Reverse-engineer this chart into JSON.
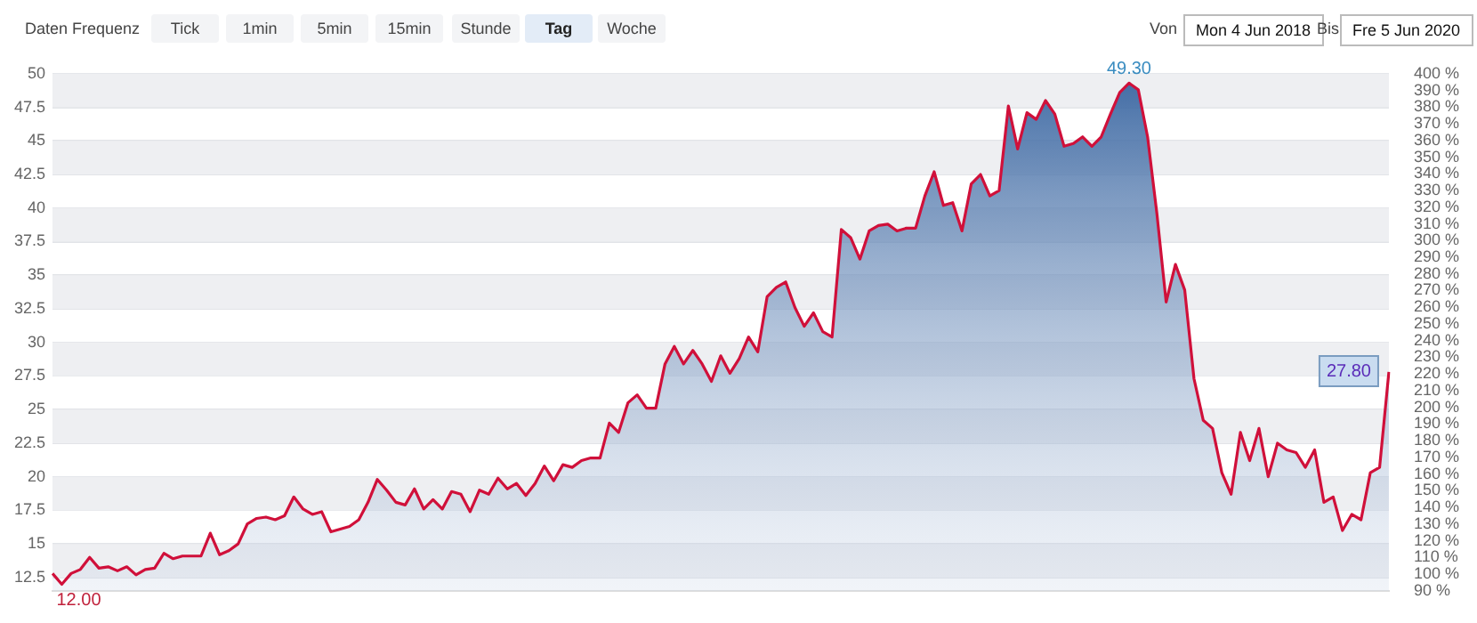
{
  "chart_data": {
    "type": "area",
    "annotations": [
      "Daten Frequenz",
      "Tick",
      "1min",
      "5min",
      "15min",
      "Stunde",
      "Tag",
      "Woche",
      "Von",
      "Mon 4 Jun 2018",
      "Bis",
      "Fre 5 Jun 2020"
    ],
    "categories": [
      null,
      null,
      null,
      null,
      null,
      null,
      null,
      null,
      null,
      null,
      null,
      null,
      null,
      null,
      null,
      null,
      null,
      null,
      null,
      null,
      null,
      null,
      null,
      null,
      null,
      null,
      null,
      null,
      null,
      null,
      null,
      null,
      null,
      null,
      null,
      null,
      null,
      null,
      null,
      null,
      null,
      null,
      null,
      null,
      null,
      null,
      null,
      null,
      null,
      null,
      null,
      null,
      null,
      null,
      null,
      null,
      null,
      null,
      null,
      null,
      null,
      null,
      null,
      null,
      null,
      null,
      null,
      null,
      null,
      null,
      null,
      null,
      null,
      null,
      null,
      null,
      null,
      null,
      null,
      null,
      null,
      null,
      null,
      null,
      null,
      null,
      null,
      null,
      null,
      null,
      null,
      null,
      null,
      null,
      null,
      null,
      null,
      null,
      null,
      null,
      null,
      null,
      null,
      null,
      null,
      null,
      null,
      null,
      null,
      null,
      null,
      null,
      null,
      null,
      null,
      null,
      null,
      null,
      null,
      null,
      null,
      null,
      null,
      null,
      null,
      null,
      null,
      null,
      null,
      null,
      null,
      null,
      null,
      null,
      null,
      null,
      null,
      null,
      null,
      null,
      null,
      null,
      null,
      null,
      null
    ],
    "series": [
      {
        "color": "#d0103a",
        "values": [
          12.8,
          12.0,
          12.8,
          13.1,
          14.0,
          13.2,
          13.3,
          13.0,
          13.3,
          12.7,
          13.1,
          13.2,
          14.3,
          13.9,
          14.1,
          14.1,
          14.1,
          15.8,
          14.2,
          14.5,
          15.0,
          16.5,
          16.9,
          17.0,
          16.8,
          17.1,
          18.5,
          17.6,
          17.2,
          17.4,
          15.9,
          16.1,
          16.3,
          16.8,
          18.1,
          19.8,
          19.0,
          18.1,
          17.9,
          19.1,
          17.6,
          18.3,
          17.6,
          18.9,
          18.7,
          17.4,
          19.0,
          18.7,
          19.9,
          19.1,
          19.5,
          18.6,
          19.5,
          20.8,
          19.7,
          20.9,
          20.7,
          21.2,
          21.4,
          21.4,
          24.0,
          23.3,
          25.5,
          26.1,
          25.1,
          25.1,
          28.4,
          29.7,
          28.4,
          29.4,
          28.4,
          27.1,
          29.0,
          27.7,
          28.8,
          30.4,
          29.3,
          33.4,
          34.1,
          34.5,
          32.6,
          31.2,
          32.2,
          30.8,
          30.4,
          38.4,
          37.8,
          36.2,
          38.3,
          38.7,
          38.8,
          38.3,
          38.5,
          38.5,
          40.9,
          42.7,
          40.2,
          40.4,
          38.3,
          41.8,
          42.5,
          40.9,
          41.3,
          47.6,
          44.4,
          47.1,
          46.6,
          48.0,
          47.0,
          44.6,
          44.8,
          45.3,
          44.6,
          45.3,
          47.0,
          48.6,
          49.3,
          48.8,
          45.3,
          39.6,
          33.0,
          35.8,
          33.9,
          27.3,
          24.2,
          23.6,
          20.3,
          18.7,
          23.3,
          21.2,
          23.6,
          20.0,
          22.5,
          22.0,
          21.8,
          20.7,
          22.0,
          18.1,
          18.5,
          16.0,
          17.2,
          16.8,
          20.3,
          20.7,
          27.8
        ],
        "value_labels": [
          null,
          "12.00",
          null,
          null,
          null,
          null,
          null,
          null,
          null,
          null,
          null,
          null,
          null,
          null,
          null,
          null,
          null,
          null,
          null,
          null,
          null,
          null,
          null,
          null,
          null,
          null,
          null,
          null,
          null,
          null,
          null,
          null,
          null,
          null,
          null,
          null,
          null,
          null,
          null,
          null,
          null,
          null,
          null,
          null,
          null,
          null,
          null,
          null,
          null,
          null,
          null,
          null,
          null,
          null,
          null,
          null,
          null,
          null,
          null,
          null,
          null,
          null,
          null,
          null,
          null,
          null,
          null,
          null,
          null,
          null,
          null,
          null,
          null,
          null,
          null,
          null,
          null,
          null,
          null,
          null,
          null,
          null,
          null,
          null,
          null,
          null,
          null,
          null,
          null,
          null,
          null,
          null,
          null,
          null,
          null,
          null,
          null,
          null,
          null,
          null,
          null,
          null,
          null,
          null,
          null,
          null,
          null,
          null,
          null,
          null,
          null,
          null,
          null,
          null,
          null,
          null,
          "49.30",
          null,
          null,
          null,
          null,
          null,
          null,
          null,
          null,
          null,
          null,
          null,
          null,
          null,
          null,
          null,
          null,
          null,
          null,
          null,
          null,
          null,
          null,
          null,
          null,
          null,
          null,
          null,
          "27.80"
        ]
      }
    ],
    "ylim": [
      11.5,
      50
    ],
    "yticks": [
      12.5,
      15,
      17.5,
      20,
      22.5,
      25,
      27.5,
      30,
      32.5,
      35,
      37.5,
      40,
      42.5,
      45,
      47.5,
      50
    ],
    "y2lim": [
      90,
      400
    ],
    "y2ticks": [
      {
        "value": 90,
        "label": "90 %"
      },
      {
        "value": 100,
        "label": "100 %"
      },
      {
        "value": 110,
        "label": "110 %"
      },
      {
        "value": 120,
        "label": "120 %"
      },
      {
        "value": 130,
        "label": "130 %"
      },
      {
        "value": 140,
        "label": "140 %"
      },
      {
        "value": 150,
        "label": "150 %"
      },
      {
        "value": 160,
        "label": "160 %"
      },
      {
        "value": 170,
        "label": "170 %"
      },
      {
        "value": 180,
        "label": "180 %"
      },
      {
        "value": 190,
        "label": "190 %"
      },
      {
        "value": 200,
        "label": "200 %"
      },
      {
        "value": 210,
        "label": "210 %"
      },
      {
        "value": 220,
        "label": "220 %"
      },
      {
        "value": 230,
        "label": "230 %"
      },
      {
        "value": 240,
        "label": "240 %"
      },
      {
        "value": 250,
        "label": "250 %"
      },
      {
        "value": 260,
        "label": "260 %"
      },
      {
        "value": 270,
        "label": "270 %"
      },
      {
        "value": 280,
        "label": "280 %"
      },
      {
        "value": 290,
        "label": "290 %"
      },
      {
        "value": 300,
        "label": "300 %"
      },
      {
        "value": 310,
        "label": "310 %"
      },
      {
        "value": 320,
        "label": "320 %"
      },
      {
        "value": 330,
        "label": "330 %"
      },
      {
        "value": 340,
        "label": "340 %"
      },
      {
        "value": 350,
        "label": "350 %"
      },
      {
        "value": 360,
        "label": "360 %"
      },
      {
        "value": 370,
        "label": "370 %"
      },
      {
        "value": 380,
        "label": "380 %"
      },
      {
        "value": 390,
        "label": "390 %"
      },
      {
        "value": 400,
        "label": "400 %"
      }
    ],
    "grid": "y",
    "legend": false,
    "marker": "none",
    "line_style": "solid"
  }
}
